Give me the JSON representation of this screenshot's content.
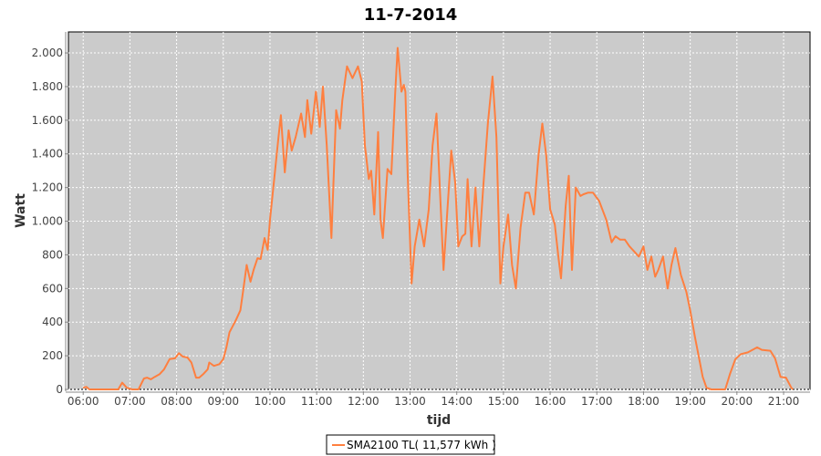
{
  "chart_data": {
    "type": "line",
    "title": "11-7-2014",
    "xlabel": "tijd",
    "ylabel": "Watt",
    "xlim": [
      "05:41",
      "21:34"
    ],
    "ylim": [
      0,
      2125
    ],
    "xticks": [
      "06:00",
      "07:00",
      "08:00",
      "09:00",
      "10:00",
      "11:00",
      "12:00",
      "13:00",
      "14:00",
      "15:00",
      "16:00",
      "17:00",
      "18:00",
      "19:00",
      "20:00",
      "21:00"
    ],
    "yticks": [
      0,
      200,
      400,
      600,
      800,
      1000,
      1200,
      1400,
      1600,
      1800,
      2000
    ],
    "ytick_labels": [
      "0",
      "200",
      "400",
      "600",
      "800",
      "1.000",
      "1.200",
      "1.400",
      "1.600",
      "1.800",
      "2.000"
    ],
    "grid": true,
    "legend_position": "bottom",
    "colors": {
      "series": "#ff7f3f",
      "plot_background": "#cbcbcb",
      "grid": "#ffffff"
    },
    "series": [
      {
        "name": "SMA2100 TL( 11,577 kWh )",
        "x": [
          "06:00",
          "06:04",
          "06:08",
          "06:45",
          "06:50",
          "06:56",
          "07:03",
          "07:11",
          "07:18",
          "07:22",
          "07:27",
          "07:32",
          "07:38",
          "07:44",
          "07:51",
          "07:58",
          "08:03",
          "08:08",
          "08:14",
          "08:19",
          "08:25",
          "08:29",
          "08:34",
          "08:40",
          "08:42",
          "08:48",
          "08:55",
          "09:00",
          "09:04",
          "09:08",
          "09:16",
          "09:22",
          "09:26",
          "09:30",
          "09:35",
          "09:39",
          "09:44",
          "09:48",
          "09:53",
          "09:57",
          "10:00",
          "10:05",
          "10:11",
          "10:14",
          "10:19",
          "10:24",
          "10:28",
          "10:33",
          "10:40",
          "10:45",
          "10:48",
          "10:53",
          "10:59",
          "11:04",
          "11:08",
          "11:13",
          "11:19",
          "11:25",
          "11:30",
          "11:33",
          "11:39",
          "11:46",
          "11:53",
          "11:58",
          "12:02",
          "12:07",
          "12:10",
          "12:14",
          "12:19",
          "12:22",
          "12:25",
          "12:31",
          "12:36",
          "12:41",
          "12:44",
          "12:49",
          "12:52",
          "12:54",
          "12:57",
          "13:02",
          "13:06",
          "13:12",
          "13:18",
          "13:24",
          "13:29",
          "13:34",
          "13:38",
          "13:43",
          "13:48",
          "13:53",
          "13:58",
          "14:02",
          "14:07",
          "14:11",
          "14:14",
          "14:19",
          "14:24",
          "14:29",
          "14:34",
          "14:40",
          "14:46",
          "14:51",
          "14:56",
          "15:00",
          "15:06",
          "15:11",
          "15:16",
          "15:22",
          "15:28",
          "15:33",
          "15:39",
          "15:45",
          "15:50",
          "15:55",
          "16:00",
          "16:06",
          "16:11",
          "16:14",
          "16:20",
          "16:24",
          "16:28",
          "16:33",
          "16:39",
          "16:43",
          "16:49",
          "16:55",
          "17:03",
          "17:12",
          "17:19",
          "17:24",
          "17:30",
          "17:36",
          "17:42",
          "17:48",
          "17:54",
          "18:00",
          "18:05",
          "18:10",
          "18:15",
          "18:19",
          "18:25",
          "18:31",
          "18:36",
          "18:41",
          "18:48",
          "18:55",
          "19:00",
          "19:06",
          "19:11",
          "19:16",
          "19:21",
          "19:27",
          "19:45",
          "19:51",
          "19:58",
          "20:05",
          "20:14",
          "20:26",
          "20:32",
          "20:43",
          "20:49",
          "20:56",
          "21:03",
          "21:10",
          "21:12"
        ],
        "y": [
          10,
          15,
          0,
          0,
          40,
          10,
          0,
          0,
          65,
          70,
          60,
          75,
          90,
          120,
          180,
          185,
          215,
          195,
          190,
          160,
          70,
          70,
          90,
          120,
          160,
          140,
          150,
          180,
          250,
          340,
          410,
          470,
          600,
          740,
          640,
          710,
          780,
          775,
          900,
          830,
          1010,
          1230,
          1500,
          1630,
          1290,
          1540,
          1420,
          1500,
          1640,
          1500,
          1720,
          1520,
          1770,
          1560,
          1800,
          1450,
          900,
          1660,
          1550,
          1720,
          1920,
          1850,
          1920,
          1830,
          1450,
          1250,
          1300,
          1040,
          1530,
          1010,
          900,
          1310,
          1280,
          1770,
          2030,
          1770,
          1810,
          1770,
          1280,
          630,
          850,
          1010,
          850,
          1070,
          1450,
          1640,
          1230,
          710,
          1070,
          1420,
          1230,
          850,
          910,
          925,
          1250,
          850,
          1200,
          850,
          1200,
          1580,
          1860,
          1500,
          630,
          850,
          1040,
          740,
          600,
          960,
          1170,
          1170,
          1040,
          1390,
          1580,
          1390,
          1070,
          980,
          770,
          660,
          1090,
          1270,
          710,
          1200,
          1150,
          1160,
          1170,
          1170,
          1120,
          1010,
          875,
          910,
          890,
          890,
          850,
          820,
          790,
          850,
          710,
          790,
          670,
          710,
          790,
          600,
          740,
          840,
          680,
          580,
          470,
          315,
          195,
          75,
          10,
          0,
          0,
          90,
          180,
          210,
          220,
          250,
          235,
          230,
          185,
          75,
          70,
          10,
          0
        ]
      }
    ]
  }
}
